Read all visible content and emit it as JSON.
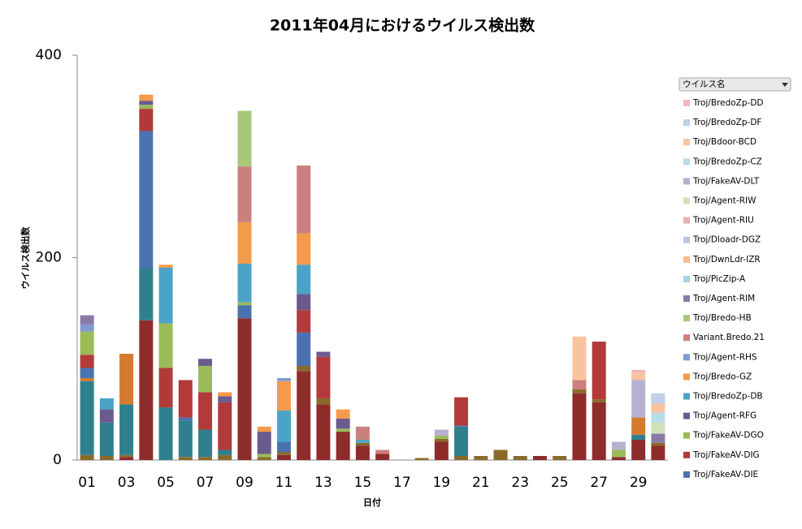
{
  "chart_data": {
    "type": "stacked_bar",
    "title": "2011年04月におけるウイルス検出数",
    "x_label": "日付",
    "y_label": "ウイルス検出数",
    "legend_title": "ウイルス名",
    "categories": [
      "01",
      null,
      "03",
      null,
      "05",
      null,
      "07",
      null,
      "09",
      null,
      "11",
      null,
      "13",
      null,
      "15",
      null,
      "17",
      null,
      "19",
      null,
      "21",
      null,
      "23",
      null,
      "25",
      null,
      "27",
      null,
      "29",
      null
    ],
    "ylim": [
      0,
      400
    ],
    "yticks": [
      0,
      200,
      400
    ],
    "series": [
      {
        "color": "#8e2c2c",
        "values": [
          0,
          0,
          3,
          138,
          0,
          0,
          0,
          0,
          140,
          0,
          5,
          88,
          55,
          28,
          14,
          6,
          0,
          0,
          18,
          0,
          0,
          0,
          0,
          4,
          0,
          66,
          57,
          3,
          20,
          14
        ]
      },
      {
        "color": "#8a6a2a",
        "values": [
          5,
          4,
          2,
          0,
          0,
          3,
          3,
          5,
          0,
          3,
          3,
          5,
          6,
          0,
          3,
          0,
          0,
          2,
          3,
          4,
          4,
          10,
          4,
          0,
          4,
          4,
          3,
          0,
          0,
          3
        ]
      },
      {
        "color": "#2f7f8f",
        "values": [
          73,
          33,
          50,
          52,
          52,
          36,
          27,
          5,
          0,
          0,
          0,
          0,
          0,
          0,
          0,
          0,
          0,
          0,
          0,
          29,
          0,
          0,
          0,
          0,
          0,
          0,
          0,
          0,
          5,
          0
        ]
      },
      {
        "color": "#d57a2e",
        "values": [
          3,
          0,
          50,
          0,
          0,
          0,
          0,
          0,
          0,
          0,
          0,
          0,
          0,
          0,
          0,
          0,
          0,
          0,
          0,
          0,
          0,
          0,
          0,
          0,
          0,
          0,
          0,
          0,
          17,
          0
        ]
      },
      {
        "name": "Troj/FakeAV-DIE",
        "color": "#4a72b0",
        "values": [
          10,
          0,
          0,
          135,
          0,
          3,
          0,
          0,
          13,
          0,
          10,
          33,
          0,
          0,
          0,
          0,
          0,
          0,
          0,
          1,
          0,
          0,
          0,
          0,
          0,
          0,
          0,
          0,
          0,
          0
        ]
      },
      {
        "name": "Troj/FakeAV-DIG",
        "color": "#b23a3a",
        "values": [
          13,
          0,
          0,
          22,
          39,
          37,
          37,
          47,
          0,
          0,
          0,
          22,
          41,
          0,
          0,
          0,
          0,
          0,
          0,
          28,
          0,
          0,
          0,
          0,
          0,
          0,
          57,
          0,
          0,
          0
        ]
      },
      {
        "name": "Troj/FakeAV-DGO",
        "color": "#9bbb59",
        "values": [
          23,
          0,
          0,
          4,
          44,
          0,
          26,
          0,
          3,
          3,
          0,
          0,
          0,
          3,
          0,
          0,
          0,
          0,
          3,
          0,
          0,
          0,
          0,
          0,
          0,
          0,
          0,
          7,
          0,
          0
        ]
      },
      {
        "name": "Troj/Agent-RFG",
        "color": "#6b5a8e",
        "values": [
          0,
          13,
          0,
          4,
          0,
          0,
          7,
          6,
          0,
          22,
          0,
          16,
          5,
          10,
          0,
          0,
          0,
          0,
          0,
          0,
          0,
          0,
          0,
          0,
          0,
          0,
          0,
          0,
          0,
          0
        ]
      },
      {
        "name": "Troj/BredoZp-DB",
        "color": "#4ba3c7",
        "values": [
          0,
          11,
          0,
          0,
          55,
          0,
          0,
          0,
          38,
          0,
          31,
          29,
          0,
          0,
          3,
          0,
          0,
          0,
          0,
          0,
          0,
          0,
          0,
          0,
          0,
          0,
          0,
          0,
          0,
          0
        ]
      },
      {
        "name": "Troj/Bredo-GZ",
        "color": "#f59a4a",
        "values": [
          0,
          0,
          0,
          6,
          3,
          0,
          0,
          4,
          41,
          5,
          29,
          31,
          0,
          9,
          0,
          0,
          0,
          0,
          0,
          0,
          0,
          0,
          0,
          0,
          0,
          0,
          0,
          0,
          0,
          0
        ]
      },
      {
        "name": "Troj/Agent-RHS",
        "color": "#7f9bd0",
        "values": [
          7,
          0,
          0,
          0,
          0,
          0,
          0,
          0,
          0,
          0,
          3,
          0,
          0,
          0,
          0,
          0,
          0,
          0,
          0,
          0,
          0,
          0,
          0,
          0,
          0,
          0,
          0,
          0,
          0,
          0
        ]
      },
      {
        "name": "Variant.Bredo.21",
        "color": "#cc7f7f",
        "values": [
          0,
          0,
          0,
          0,
          0,
          0,
          0,
          0,
          55,
          0,
          0,
          67,
          0,
          0,
          13,
          4,
          0,
          0,
          0,
          0,
          0,
          0,
          0,
          0,
          0,
          9,
          0,
          0,
          0,
          0
        ]
      },
      {
        "name": "Troj/Bredo-HB",
        "color": "#a8c878",
        "values": [
          0,
          0,
          0,
          0,
          0,
          0,
          0,
          0,
          55,
          0,
          0,
          0,
          0,
          0,
          0,
          0,
          0,
          0,
          0,
          0,
          0,
          0,
          0,
          0,
          0,
          0,
          0,
          0,
          0,
          0
        ]
      },
      {
        "name": "Troj/Agent-RIM",
        "color": "#8a7aa8",
        "values": [
          9,
          0,
          0,
          0,
          0,
          0,
          0,
          0,
          0,
          0,
          0,
          0,
          0,
          0,
          0,
          0,
          0,
          0,
          0,
          0,
          0,
          0,
          0,
          0,
          0,
          0,
          0,
          0,
          0,
          9
        ]
      },
      {
        "name": "Troj/PicZip-A",
        "color": "#a8d0e0",
        "values": [
          0,
          0,
          0,
          0,
          0,
          0,
          0,
          0,
          0,
          0,
          0,
          0,
          0,
          0,
          0,
          0,
          0,
          0,
          0,
          0,
          0,
          0,
          0,
          0,
          0,
          0,
          0,
          0,
          0,
          0
        ]
      },
      {
        "name": "Troj/DwnLdr-IZR",
        "color": "#f8b890",
        "values": [
          0,
          0,
          0,
          0,
          0,
          0,
          0,
          0,
          0,
          0,
          0,
          0,
          0,
          0,
          0,
          0,
          0,
          0,
          0,
          0,
          0,
          0,
          0,
          0,
          0,
          0,
          0,
          0,
          0,
          0
        ]
      },
      {
        "name": "Troj/Dloadr-DGZ",
        "color": "#b8c8e0",
        "values": [
          0,
          0,
          0,
          0,
          0,
          0,
          0,
          0,
          0,
          0,
          0,
          0,
          0,
          0,
          0,
          0,
          0,
          0,
          0,
          0,
          0,
          0,
          0,
          0,
          0,
          0,
          0,
          0,
          0,
          0
        ]
      },
      {
        "name": "Troj/Agent-RIU",
        "color": "#e8b0b0",
        "values": [
          0,
          0,
          0,
          0,
          0,
          0,
          0,
          0,
          0,
          0,
          0,
          0,
          0,
          0,
          0,
          0,
          0,
          0,
          0,
          0,
          0,
          0,
          0,
          0,
          0,
          0,
          0,
          0,
          0,
          0
        ]
      },
      {
        "name": "Troj/Agent-RIW",
        "color": "#d0e0b8",
        "values": [
          0,
          0,
          0,
          0,
          0,
          0,
          0,
          0,
          0,
          0,
          0,
          0,
          0,
          0,
          0,
          0,
          0,
          0,
          0,
          0,
          0,
          0,
          0,
          0,
          0,
          0,
          0,
          0,
          0,
          11
        ]
      },
      {
        "name": "Troj/FakeAV-DLT",
        "color": "#b8b0d0",
        "values": [
          0,
          0,
          0,
          0,
          0,
          0,
          0,
          0,
          0,
          0,
          0,
          0,
          0,
          0,
          0,
          0,
          0,
          0,
          6,
          0,
          0,
          0,
          0,
          0,
          0,
          0,
          0,
          8,
          37,
          0
        ]
      },
      {
        "name": "Troj/BredoZp-CZ",
        "color": "#b8dce8",
        "values": [
          0,
          0,
          0,
          0,
          0,
          0,
          0,
          0,
          0,
          0,
          0,
          0,
          0,
          0,
          0,
          0,
          0,
          0,
          0,
          0,
          0,
          0,
          0,
          0,
          0,
          0,
          0,
          0,
          0,
          10
        ]
      },
      {
        "name": "Troj/Bdoor-BCD",
        "color": "#f9c3a0",
        "values": [
          0,
          0,
          0,
          0,
          0,
          0,
          0,
          0,
          0,
          0,
          0,
          0,
          0,
          0,
          0,
          0,
          0,
          0,
          0,
          0,
          0,
          0,
          0,
          0,
          0,
          43,
          0,
          0,
          7,
          9
        ]
      },
      {
        "name": "Troj/BredoZp-DF",
        "color": "#c0d0e8",
        "values": [
          0,
          0,
          0,
          0,
          0,
          0,
          0,
          0,
          0,
          0,
          0,
          0,
          0,
          0,
          0,
          0,
          0,
          0,
          0,
          0,
          0,
          0,
          0,
          0,
          0,
          0,
          0,
          0,
          0,
          10
        ]
      },
      {
        "name": "Troj/BredoZp-DD",
        "color": "#f0b8b8",
        "values": [
          0,
          0,
          0,
          0,
          0,
          0,
          0,
          0,
          0,
          0,
          0,
          0,
          0,
          0,
          0,
          0,
          0,
          0,
          0,
          0,
          0,
          0,
          0,
          0,
          0,
          0,
          0,
          0,
          3,
          0
        ]
      }
    ]
  }
}
